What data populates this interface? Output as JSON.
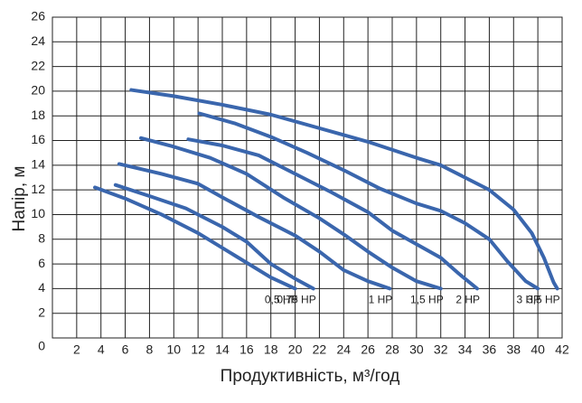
{
  "chart_data": {
    "type": "line",
    "x_label": "Продуктивність, м³/год",
    "y_label": "Напір, м",
    "xlim": [
      0,
      42
    ],
    "xticks": [
      2,
      4,
      6,
      8,
      10,
      12,
      14,
      16,
      18,
      20,
      22,
      24,
      26,
      28,
      30,
      32,
      34,
      36,
      38,
      40,
      42
    ],
    "ylim": [
      0,
      26
    ],
    "yticks": [
      0,
      2,
      4,
      6,
      8,
      10,
      12,
      14,
      16,
      18,
      20,
      22,
      24,
      26
    ],
    "grid": true,
    "color": "#3a66ad",
    "series": [
      {
        "name": "0,5 HP",
        "x": [
          3.5,
          6,
          9,
          12,
          15,
          18,
          20
        ],
        "values": [
          12.2,
          11.3,
          10,
          8.5,
          6.7,
          4.9,
          4
        ]
      },
      {
        "name": "0,75 HP",
        "x": [
          5.2,
          8,
          11,
          14,
          16,
          18,
          20,
          21.5
        ],
        "values": [
          12.4,
          11.5,
          10.5,
          9,
          7.8,
          6,
          4.8,
          4
        ]
      },
      {
        "name": "1 HP",
        "x": [
          5.5,
          9,
          12,
          14,
          17,
          20,
          22,
          24,
          26,
          27.8
        ],
        "values": [
          14.1,
          13.3,
          12.5,
          11.4,
          9.8,
          8.3,
          7,
          5.5,
          4.6,
          4
        ]
      },
      {
        "name": "1,5 HP",
        "x": [
          7.3,
          10,
          13,
          16,
          19,
          22,
          24,
          26,
          28,
          30,
          32
        ],
        "values": [
          16.2,
          15.5,
          14.6,
          13.3,
          11.4,
          9.7,
          8.4,
          7,
          5.7,
          4.6,
          4
        ]
      },
      {
        "name": "2 HP",
        "x": [
          11.2,
          14,
          17,
          20,
          23,
          26,
          28,
          30,
          32,
          33.5,
          35
        ],
        "values": [
          16.1,
          15.6,
          14.8,
          13.3,
          11.8,
          10.2,
          8.7,
          7.6,
          6.5,
          5.2,
          4
        ]
      },
      {
        "name": "3 HP",
        "x": [
          12.1,
          15,
          18,
          21,
          24,
          27,
          30,
          32,
          34,
          36,
          37.5,
          39,
          40
        ],
        "values": [
          18.2,
          17.4,
          16.3,
          15,
          13.6,
          12.1,
          10.9,
          10.3,
          9.3,
          8,
          6.2,
          4.6,
          4
        ]
      },
      {
        "name": "3,5 HP",
        "x": [
          6.5,
          10,
          14,
          18,
          22,
          26,
          30,
          32,
          34,
          36,
          38,
          39.5,
          40.5,
          41.3,
          41.6
        ],
        "values": [
          20.1,
          19.6,
          18.9,
          18.1,
          17,
          15.9,
          14.6,
          14,
          13,
          12,
          10.4,
          8.5,
          6.5,
          4.5,
          4
        ]
      }
    ]
  }
}
